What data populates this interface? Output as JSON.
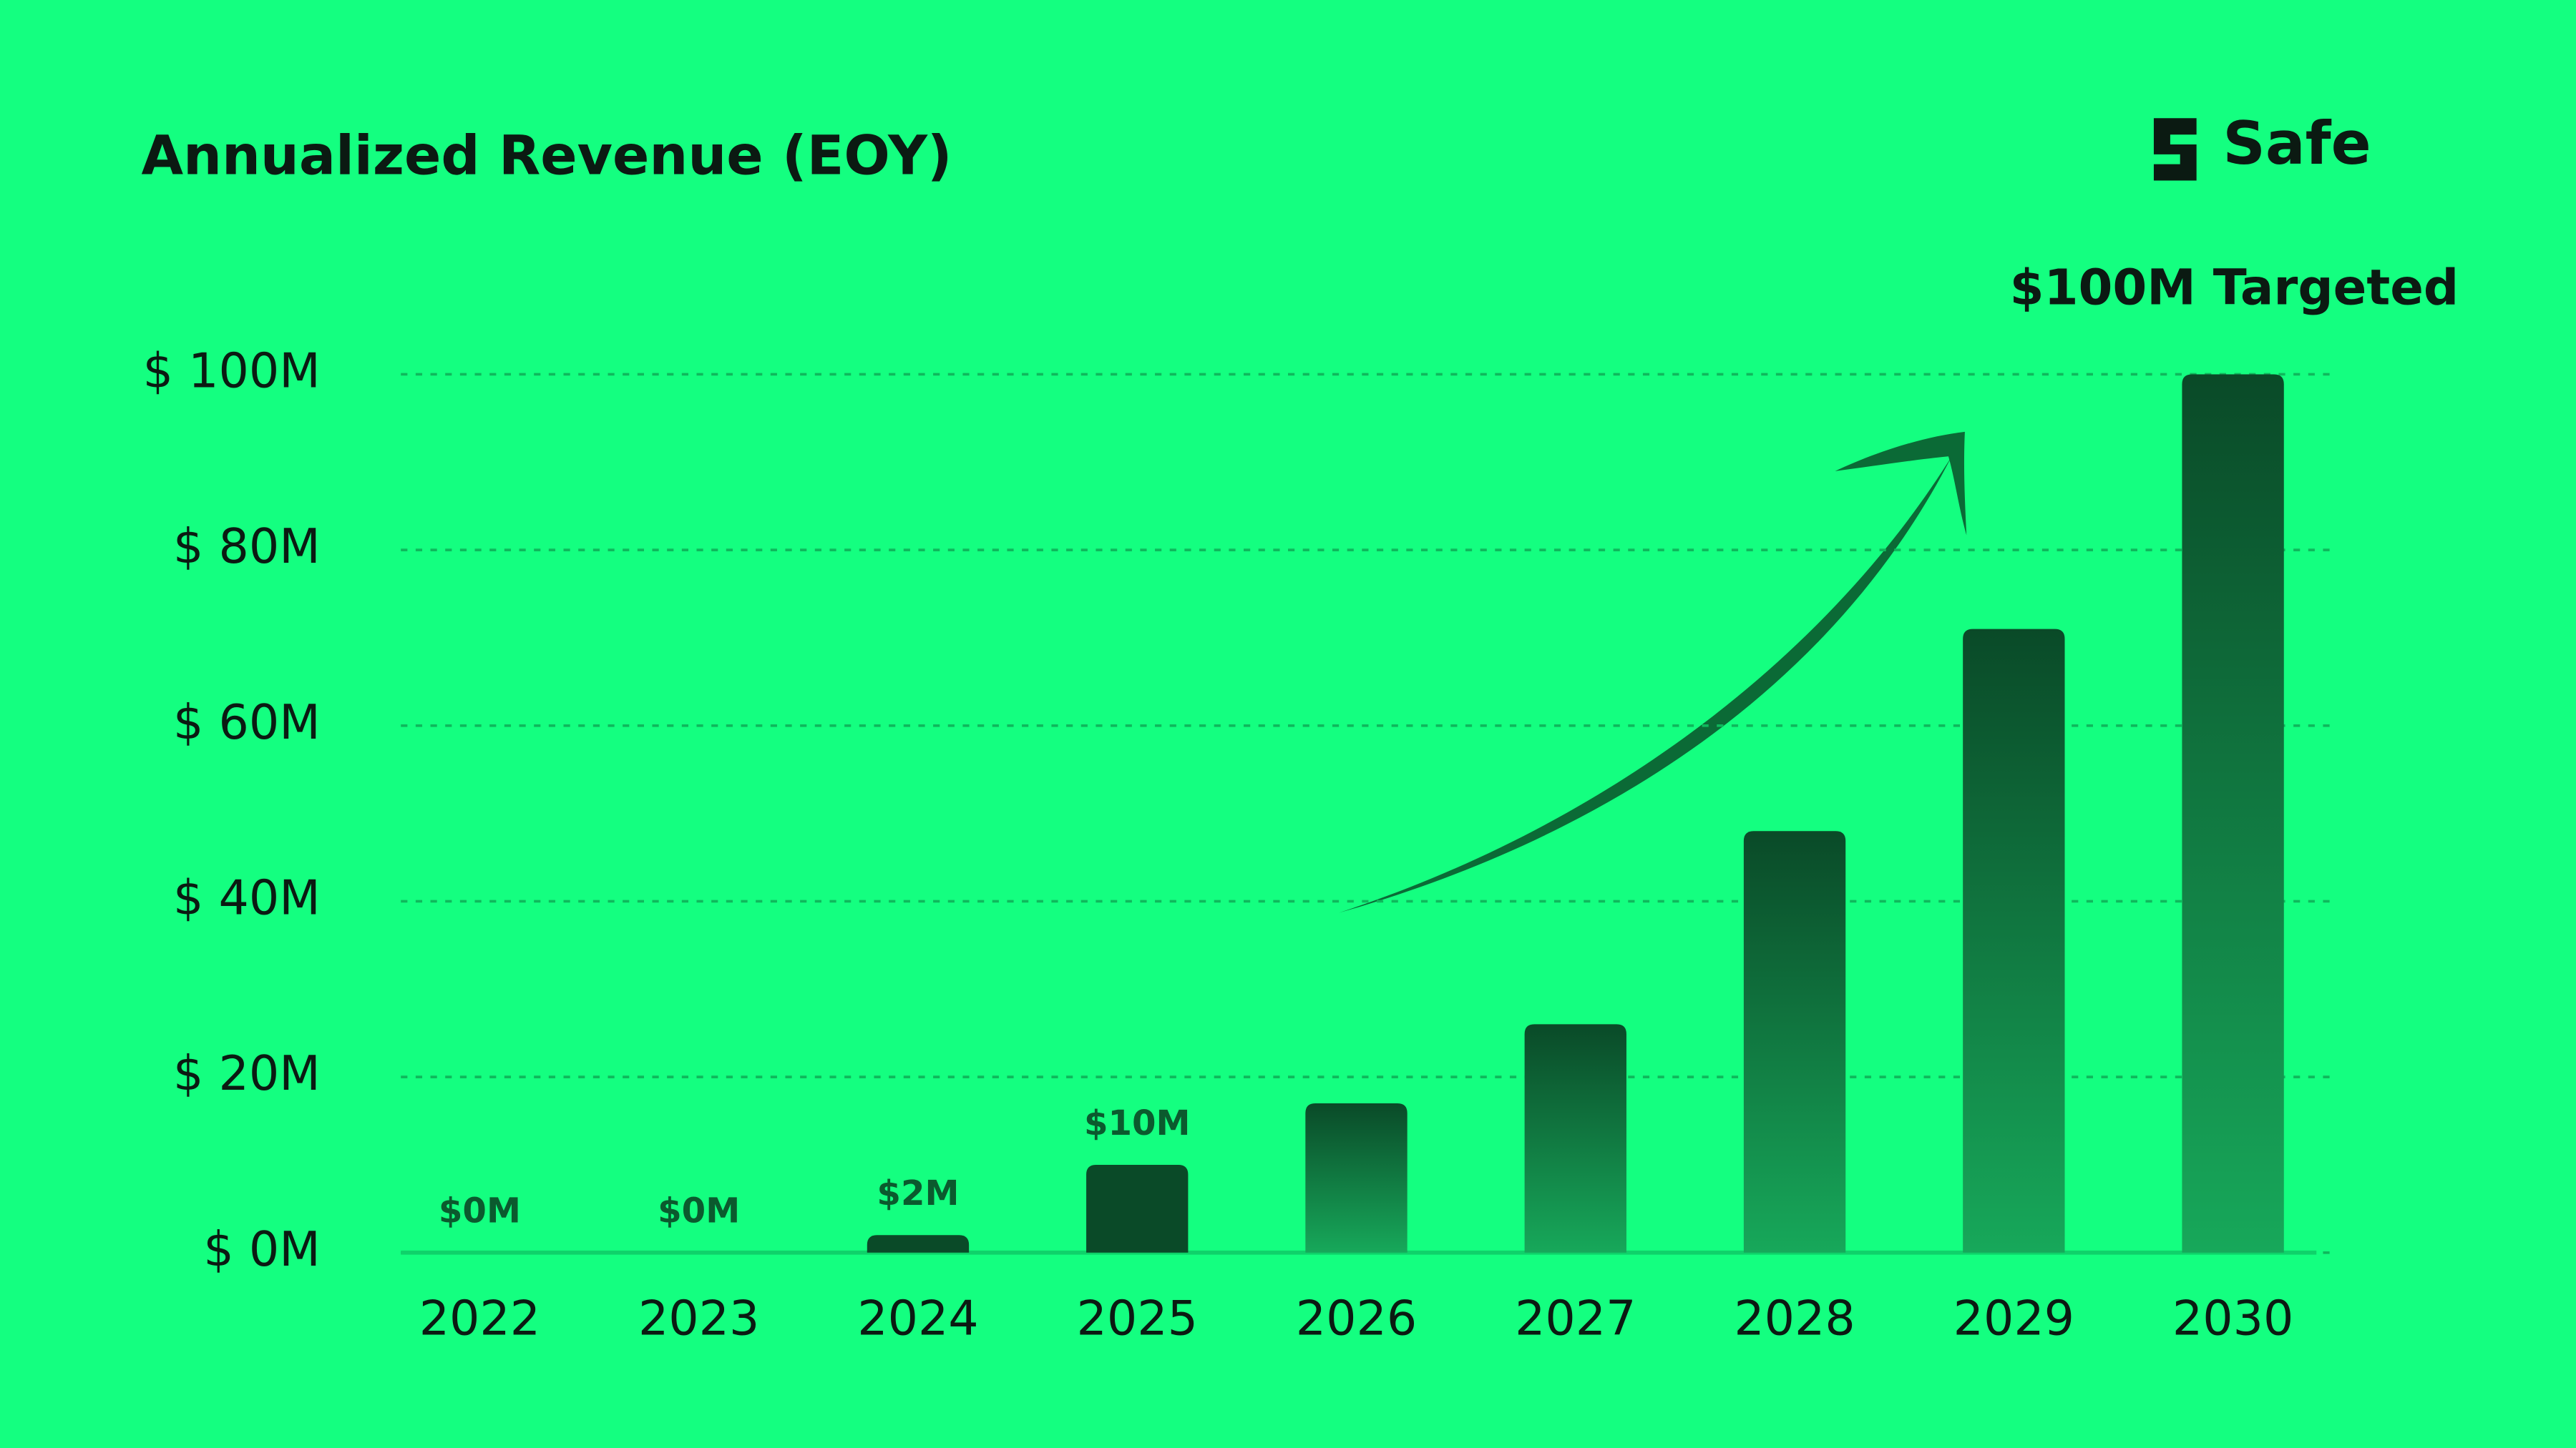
{
  "chart_data": {
    "type": "bar",
    "title": "Annualized Revenue (EOY)",
    "brand": "Safe",
    "annotation": "$100M Targeted",
    "categories": [
      "2022",
      "2023",
      "2024",
      "2025",
      "2026",
      "2027",
      "2028",
      "2029",
      "2030"
    ],
    "values": [
      0,
      0,
      2,
      10,
      17,
      26,
      48,
      71,
      100
    ],
    "value_labels": [
      "$0M",
      "$0M",
      "$2M",
      "$10M",
      null,
      null,
      null,
      null,
      null
    ],
    "color": "#0a4a28",
    "ylim": [
      0,
      100
    ],
    "yticks": [
      {
        "value": 0,
        "label": "$ 0M"
      },
      {
        "value": 20,
        "label": "$ 20M"
      },
      {
        "value": 40,
        "label": "$ 40M"
      },
      {
        "value": 60,
        "label": "$ 60M"
      },
      {
        "value": 80,
        "label": "$ 80M"
      },
      {
        "value": 100,
        "label": "$ 100M"
      }
    ],
    "grid": true
  }
}
